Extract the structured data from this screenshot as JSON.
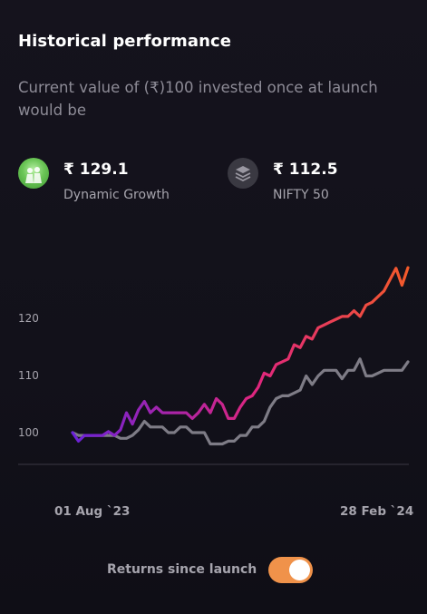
{
  "header": {
    "title": "Historical performance",
    "subtitle": "Current value of (₹)100 invested once at launch would be"
  },
  "funds": [
    {
      "value": "₹ 129.1",
      "name": "Dynamic Growth",
      "icon": "family-photo-icon"
    },
    {
      "value": "₹ 112.5",
      "name": "NIFTY 50",
      "icon": "stack-layers-icon"
    }
  ],
  "chart_data": {
    "type": "line",
    "x_start": "01 Aug `23",
    "x_end": "28 Feb `24",
    "ylim": [
      95,
      132
    ],
    "y_ticks": [
      "120",
      "110",
      "100"
    ],
    "y_tick_values": [
      120,
      110,
      100
    ],
    "grid": false,
    "series": [
      {
        "name": "Dynamic Growth",
        "color_start": "#6a22d8",
        "color_mid": "#e0267e",
        "color_end": "#f35a2a",
        "values": [
          100,
          98.5,
          99.5,
          99.5,
          99.5,
          99.5,
          100.2,
          99.5,
          100.5,
          103.5,
          101.5,
          104,
          105.5,
          103.5,
          104.5,
          103.5,
          103.5,
          103.5,
          103.5,
          103.5,
          102.5,
          103.5,
          105,
          103.5,
          106,
          105,
          102.5,
          102.5,
          104.5,
          106,
          106.5,
          108,
          110.5,
          110,
          112,
          112.5,
          113,
          115.5,
          115,
          117,
          116.5,
          118.5,
          119,
          119.5,
          120,
          120.5,
          120.5,
          121.5,
          120.5,
          122.5,
          123,
          124,
          125,
          127,
          129,
          126,
          129.1
        ]
      },
      {
        "name": "NIFTY 50",
        "color": "#7e7c86",
        "values": [
          100,
          99.5,
          99.5,
          99.5,
          99.5,
          99.5,
          99.5,
          99.5,
          99,
          99,
          99.5,
          100.5,
          102,
          101,
          101,
          101,
          100,
          100,
          101,
          101,
          100,
          100,
          100,
          98,
          98,
          98,
          98.5,
          98.5,
          99.5,
          99.5,
          101,
          101,
          102,
          104.5,
          106,
          106.5,
          106.5,
          107,
          107.5,
          110,
          108.5,
          110,
          111,
          111,
          111,
          109.5,
          111,
          111,
          113,
          110,
          110,
          110.5,
          111,
          111,
          111,
          111,
          112.5
        ]
      }
    ]
  },
  "footer": {
    "toggle_label": "Returns since launch",
    "toggle_on": true,
    "toggle_color": "#f0924a"
  }
}
